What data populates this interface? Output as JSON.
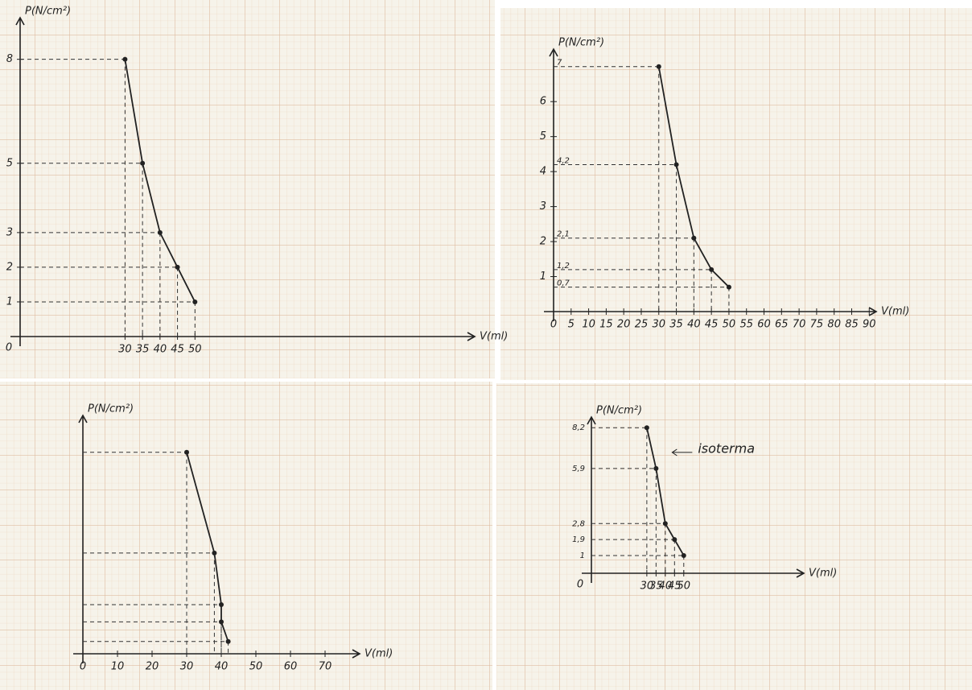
{
  "chart_data": [
    {
      "type": "line",
      "y_label": "P(N/cm²)",
      "x_label": "V(ml)",
      "origin_label": "0",
      "x": [
        30,
        35,
        40,
        45,
        50
      ],
      "values": [
        8,
        5,
        3,
        2,
        1
      ],
      "color": "#222222",
      "xlim": [
        0,
        130
      ],
      "ylim": [
        0,
        9.2
      ],
      "xticks": [
        30,
        35,
        40,
        45,
        50
      ],
      "yticks": [
        1,
        2,
        3,
        5,
        8
      ],
      "guides": true
    },
    {
      "type": "line",
      "y_label": "P(N/cm²)",
      "x_label": "V(ml)",
      "x": [
        30,
        35,
        40,
        45,
        50
      ],
      "values": [
        7,
        4.2,
        2.1,
        1.2,
        0.7
      ],
      "value_labels": [
        "7",
        "4,2",
        "2,1",
        "1,2",
        "0,7"
      ],
      "color": "#222222",
      "xlim": [
        0,
        92
      ],
      "ylim": [
        0,
        7.5
      ],
      "xticks": [
        0,
        5,
        10,
        15,
        20,
        25,
        30,
        35,
        40,
        45,
        50,
        55,
        60,
        65,
        70,
        75,
        80,
        85,
        90
      ],
      "yticks": [
        1,
        2,
        3,
        4,
        5,
        6
      ],
      "guides": true
    },
    {
      "type": "line",
      "y_label": "P(N/cm²)",
      "x_label": "V(ml)",
      "x": [
        30,
        38,
        40,
        40,
        42
      ],
      "values": [
        8.2,
        4.1,
        2.0,
        1.3,
        0.5
      ],
      "color": "#222222",
      "xlim": [
        0,
        80
      ],
      "ylim": [
        0,
        9.7
      ],
      "xticks": [
        0,
        10,
        20,
        30,
        40,
        50,
        60,
        70
      ],
      "yticks": [],
      "guides": true
    },
    {
      "type": "line",
      "y_label": "P(N/cm²)",
      "x_label": "V(ml)",
      "origin_label": "0",
      "annotation": "isoterma",
      "x": [
        30,
        35,
        40,
        45,
        50
      ],
      "values": [
        8.2,
        5.9,
        2.8,
        1.9,
        1
      ],
      "value_labels": [
        "8,2",
        "5,9",
        "2,8",
        "1,9",
        "1"
      ],
      "color": "#222222",
      "xlim": [
        0,
        115
      ],
      "ylim": [
        0,
        8.8
      ],
      "xticks": [
        30,
        35,
        40,
        45,
        50
      ],
      "yticks": [],
      "guides": true
    }
  ]
}
